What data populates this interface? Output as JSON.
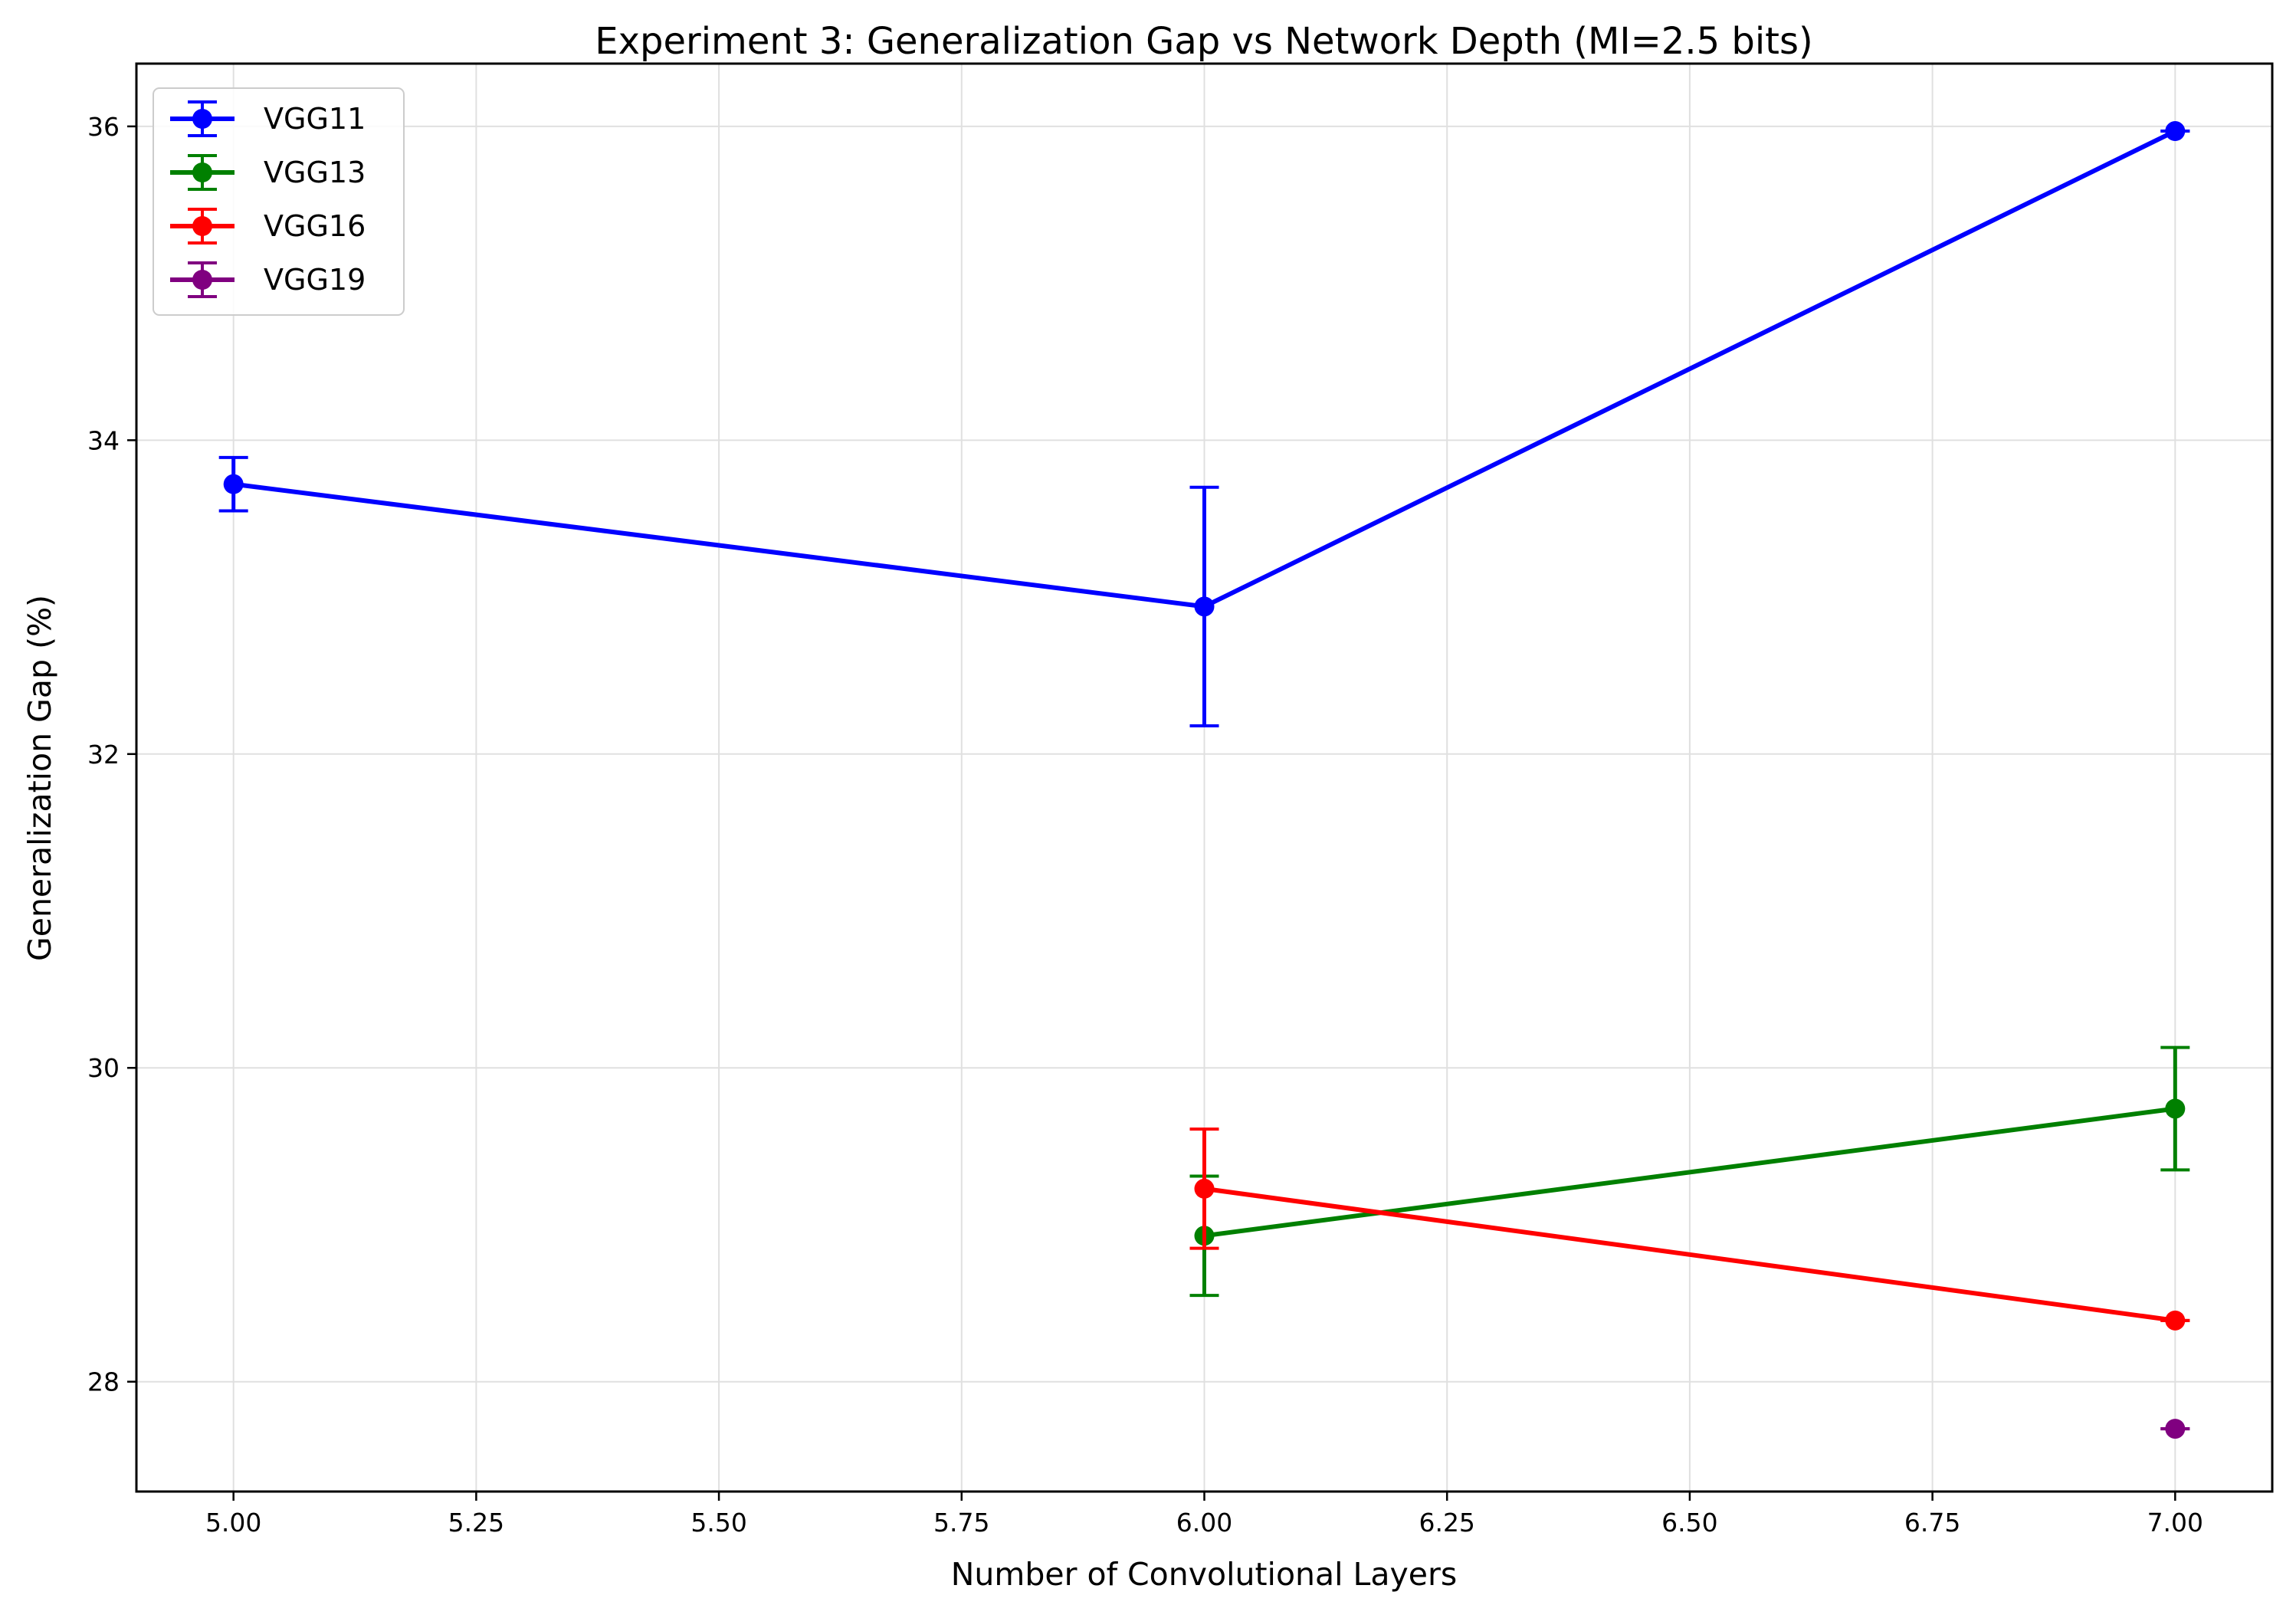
{
  "chart_data": {
    "type": "line",
    "title": "Experiment 3: Generalization Gap vs Network Depth (MI=2.5 bits)",
    "xlabel": "Number of Convolutional Layers",
    "ylabel": "Generalization Gap (%)",
    "xlim": [
      4.9,
      7.1
    ],
    "ylim": [
      27.3,
      36.4
    ],
    "xticks": [
      5.0,
      5.25,
      5.5,
      5.75,
      6.0,
      6.25,
      6.5,
      6.75,
      7.0
    ],
    "xtick_labels": [
      "5.00",
      "5.25",
      "5.50",
      "5.75",
      "6.00",
      "6.25",
      "6.50",
      "6.75",
      "7.00"
    ],
    "yticks": [
      28,
      30,
      32,
      34,
      36
    ],
    "ytick_labels": [
      "28",
      "30",
      "32",
      "34",
      "36"
    ],
    "grid": true,
    "legend_position": "top-left",
    "series": [
      {
        "name": "VGG11",
        "color": "#0000ff",
        "points": [
          {
            "x": 5,
            "y": 33.72,
            "err": 0.17
          },
          {
            "x": 6,
            "y": 32.94,
            "err": 0.76
          },
          {
            "x": 7,
            "y": 35.97,
            "err": 0.0
          }
        ]
      },
      {
        "name": "VGG13",
        "color": "#008000",
        "points": [
          {
            "x": 6,
            "y": 28.93,
            "err": 0.38
          },
          {
            "x": 7,
            "y": 29.74,
            "err": 0.39
          }
        ]
      },
      {
        "name": "VGG16",
        "color": "#ff0000",
        "points": [
          {
            "x": 6,
            "y": 29.23,
            "err": 0.38
          },
          {
            "x": 7,
            "y": 28.39,
            "err": 0.0
          }
        ]
      },
      {
        "name": "VGG19",
        "color": "#800080",
        "points": [
          {
            "x": 7,
            "y": 27.7,
            "err": 0.0
          }
        ]
      }
    ]
  }
}
